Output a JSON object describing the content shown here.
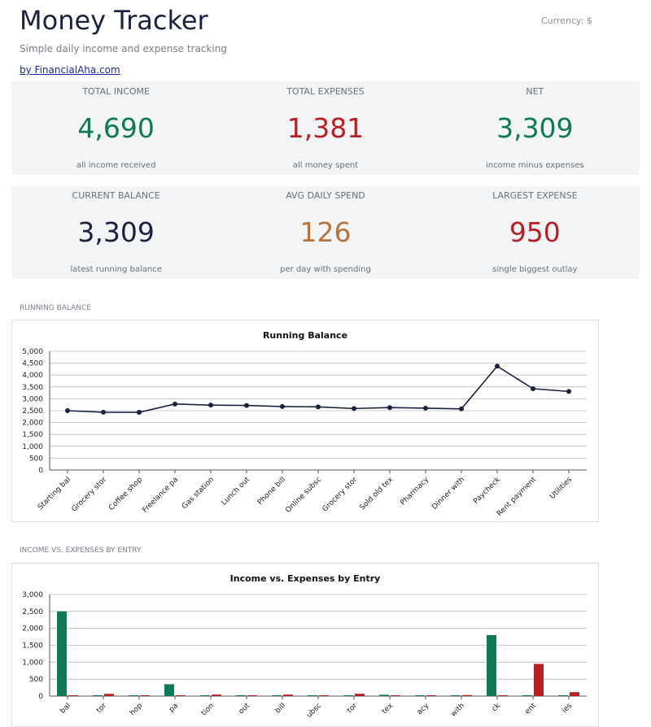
{
  "header": {
    "title": "Money Tracker",
    "currency": "Currency: $",
    "subtitle": "Simple daily income and expense tracking",
    "byline": "by FinancialAha.com"
  },
  "colors": {
    "positive": "#0b7a55",
    "negative": "#b81f24",
    "neutral": "#1a2240",
    "amber": "#b8733a",
    "line": "#1a2240"
  },
  "summary_row1": [
    {
      "label": "TOTAL INCOME",
      "value": "4,690",
      "caption": "all income received",
      "tone": "positive"
    },
    {
      "label": "TOTAL EXPENSES",
      "value": "1,381",
      "caption": "all money spent",
      "tone": "negative"
    },
    {
      "label": "NET",
      "value": "3,309",
      "caption": "income minus expenses",
      "tone": "positive"
    }
  ],
  "summary_row2": [
    {
      "label": "CURRENT BALANCE",
      "value": "3,309",
      "caption": "latest running balance",
      "tone": "neutral"
    },
    {
      "label": "AVG DAILY SPEND",
      "value": "126",
      "caption": "per day with spending",
      "tone": "amber"
    },
    {
      "label": "LARGEST EXPENSE",
      "value": "950",
      "caption": "single biggest outlay",
      "tone": "negative"
    }
  ],
  "sections": {
    "balance": "RUNNING BALANCE",
    "income_expense": "INCOME VS. EXPENSES BY ENTRY"
  },
  "chart_data": [
    {
      "type": "line",
      "title": "Running Balance",
      "categories": [
        "Starting bal",
        "Grocery stor",
        "Coffee shop",
        "Freelance pa",
        "Gas station",
        "Lunch out",
        "Phone bill",
        "Online subsc",
        "Grocery stor",
        "Sold old tex",
        "Pharmacy",
        "Dinner with",
        "Paycheck",
        "Rent payment",
        "Utilities"
      ],
      "values": [
        2500,
        2435,
        2430,
        2780,
        2735,
        2720,
        2675,
        2660,
        2590,
        2630,
        2605,
        2575,
        4375,
        3425,
        3309
      ],
      "ylim": [
        0,
        5000
      ],
      "yticks": [
        "0",
        "500",
        "1,000",
        "1,500",
        "2,000",
        "2,500",
        "3,000",
        "3,500",
        "4,000",
        "4,500",
        "5,000"
      ],
      "grid": true
    },
    {
      "type": "bar",
      "title": "Income vs. Expenses by Entry",
      "categories": [
        "Starting bal",
        "Grocery stor",
        "Coffee shop",
        "Freelance pa",
        "Gas station",
        "Lunch out",
        "Phone bill",
        "Online subsc",
        "Grocery stor",
        "Sold old tex",
        "Pharmacy",
        "Dinner with",
        "Paycheck",
        "Rent payment",
        "Utilities"
      ],
      "tick_labels": [
        "bal",
        "tor",
        "hop",
        "pa",
        "tion",
        "out",
        "bill",
        "ubsc",
        "tor",
        "tex",
        "acy",
        "with",
        "ck",
        "ent",
        "ies"
      ],
      "series": [
        {
          "values": [
            2500,
            0,
            0,
            350,
            0,
            0,
            0,
            0,
            0,
            40,
            0,
            0,
            1800,
            0,
            0
          ],
          "color": "#0b7a55"
        },
        {
          "values": [
            0,
            65,
            5,
            0,
            45,
            15,
            45,
            15,
            70,
            0,
            25,
            30,
            0,
            950,
            116
          ],
          "color": "#b81f24"
        }
      ],
      "ylim": [
        0,
        3000
      ],
      "yticks": [
        "0",
        "500",
        "1,000",
        "1,500",
        "2,000",
        "2,500",
        "3,000"
      ],
      "grid": true
    }
  ]
}
